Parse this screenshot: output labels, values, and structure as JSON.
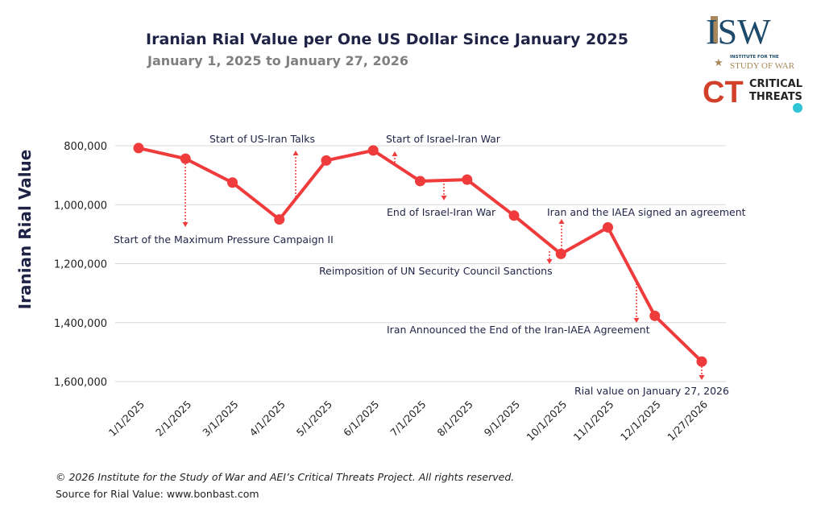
{
  "header": {
    "title": "Iranian Rial Value per One US Dollar Since January 2025",
    "subtitle": "January 1, 2025 to January 27, 2026"
  },
  "logos": {
    "isw": {
      "mark": "ISW",
      "tagline_top": "INSTITUTE FOR THE",
      "tagline_bottom": "STUDY OF WAR",
      "colors": {
        "navy": "#1d4a6b",
        "gold": "#a8885a"
      }
    },
    "ct": {
      "mark": "CT",
      "line1": "CRITICAL",
      "line2": "THREATS",
      "colors": {
        "red": "#d0402b",
        "teal": "#2ec4d6"
      }
    }
  },
  "chart_data": {
    "type": "line",
    "title": "Iranian Rial Value per One US Dollar Since January 2025",
    "ylabel": "Iranian Rial Value",
    "xlabel": "",
    "y_inverted": true,
    "ylim": [
      800000,
      1600000
    ],
    "yticks": [
      "800,000",
      "1,000,000",
      "1,200,000",
      "1,400,000",
      "1,600,000"
    ],
    "ytick_values": [
      800000,
      1000000,
      1200000,
      1400000,
      1600000
    ],
    "grid": "horizontal",
    "line_color": "#ef3b3b",
    "categories": [
      "1/1/2025",
      "2/1/2025",
      "3/1/2025",
      "4/1/2025",
      "5/1/2025",
      "6/1/2025",
      "7/1/2025",
      "8/1/2025",
      "9/1/2025",
      "10/1/2025",
      "11/1/2025",
      "12/1/2025",
      "1/27/2026"
    ],
    "values": [
      808000,
      844000,
      925000,
      1050000,
      850000,
      816000,
      920000,
      915000,
      1037000,
      1167000,
      1077000,
      1377000,
      1532000
    ],
    "annotations": [
      {
        "text": "Start of the Maximum Pressure Campaign II"
      },
      {
        "text": "Start of US-Iran Talks"
      },
      {
        "text": "Start of Israel-Iran War"
      },
      {
        "text": "End of Israel-Iran War"
      },
      {
        "text": "Reimposition of UN Security Council Sanctions"
      },
      {
        "text": "Iran and the IAEA signed an agreement"
      },
      {
        "text": "Iran Announced the End of the Iran-IAEA Agreement"
      },
      {
        "text": "Rial value on January 27, 2026"
      }
    ]
  },
  "footer": {
    "copyright": "© 2026 Institute for the Study of War and AEI’s Critical Threats Project. All rights reserved.",
    "source": "Source for Rial Value: www.bonbast.com"
  }
}
